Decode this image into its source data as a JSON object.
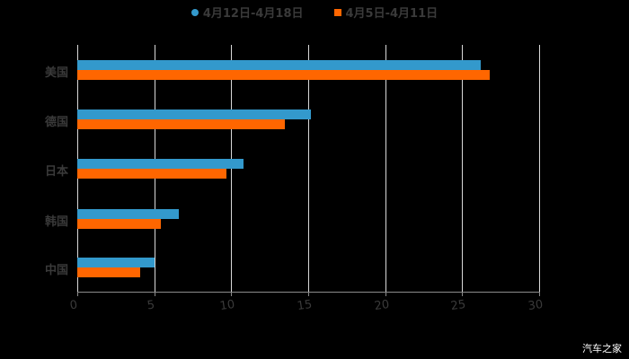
{
  "chart_data": {
    "type": "bar",
    "orientation": "horizontal",
    "title": "",
    "categories": [
      "美国",
      "德国",
      "日本",
      "韩国",
      "中国"
    ],
    "series": [
      {
        "name": "4月12日-4月18日",
        "color": "#3399cc",
        "values": [
          26.2,
          15.2,
          10.8,
          6.6,
          5.0
        ]
      },
      {
        "name": "4月5日-4月11日",
        "color": "#ff6600",
        "values": [
          26.8,
          13.5,
          9.7,
          5.4,
          4.1
        ]
      }
    ],
    "xlabel": "",
    "ylabel": "",
    "xlim": [
      0,
      30
    ],
    "xticks": [
      "0",
      "5",
      "10",
      "15",
      "20",
      "25",
      "30"
    ],
    "grid": true,
    "legend_position": "top"
  },
  "legend": {
    "series0": "4月12日-4月18日",
    "series1": "4月5日-4月11日"
  },
  "watermark": "汽车之家"
}
